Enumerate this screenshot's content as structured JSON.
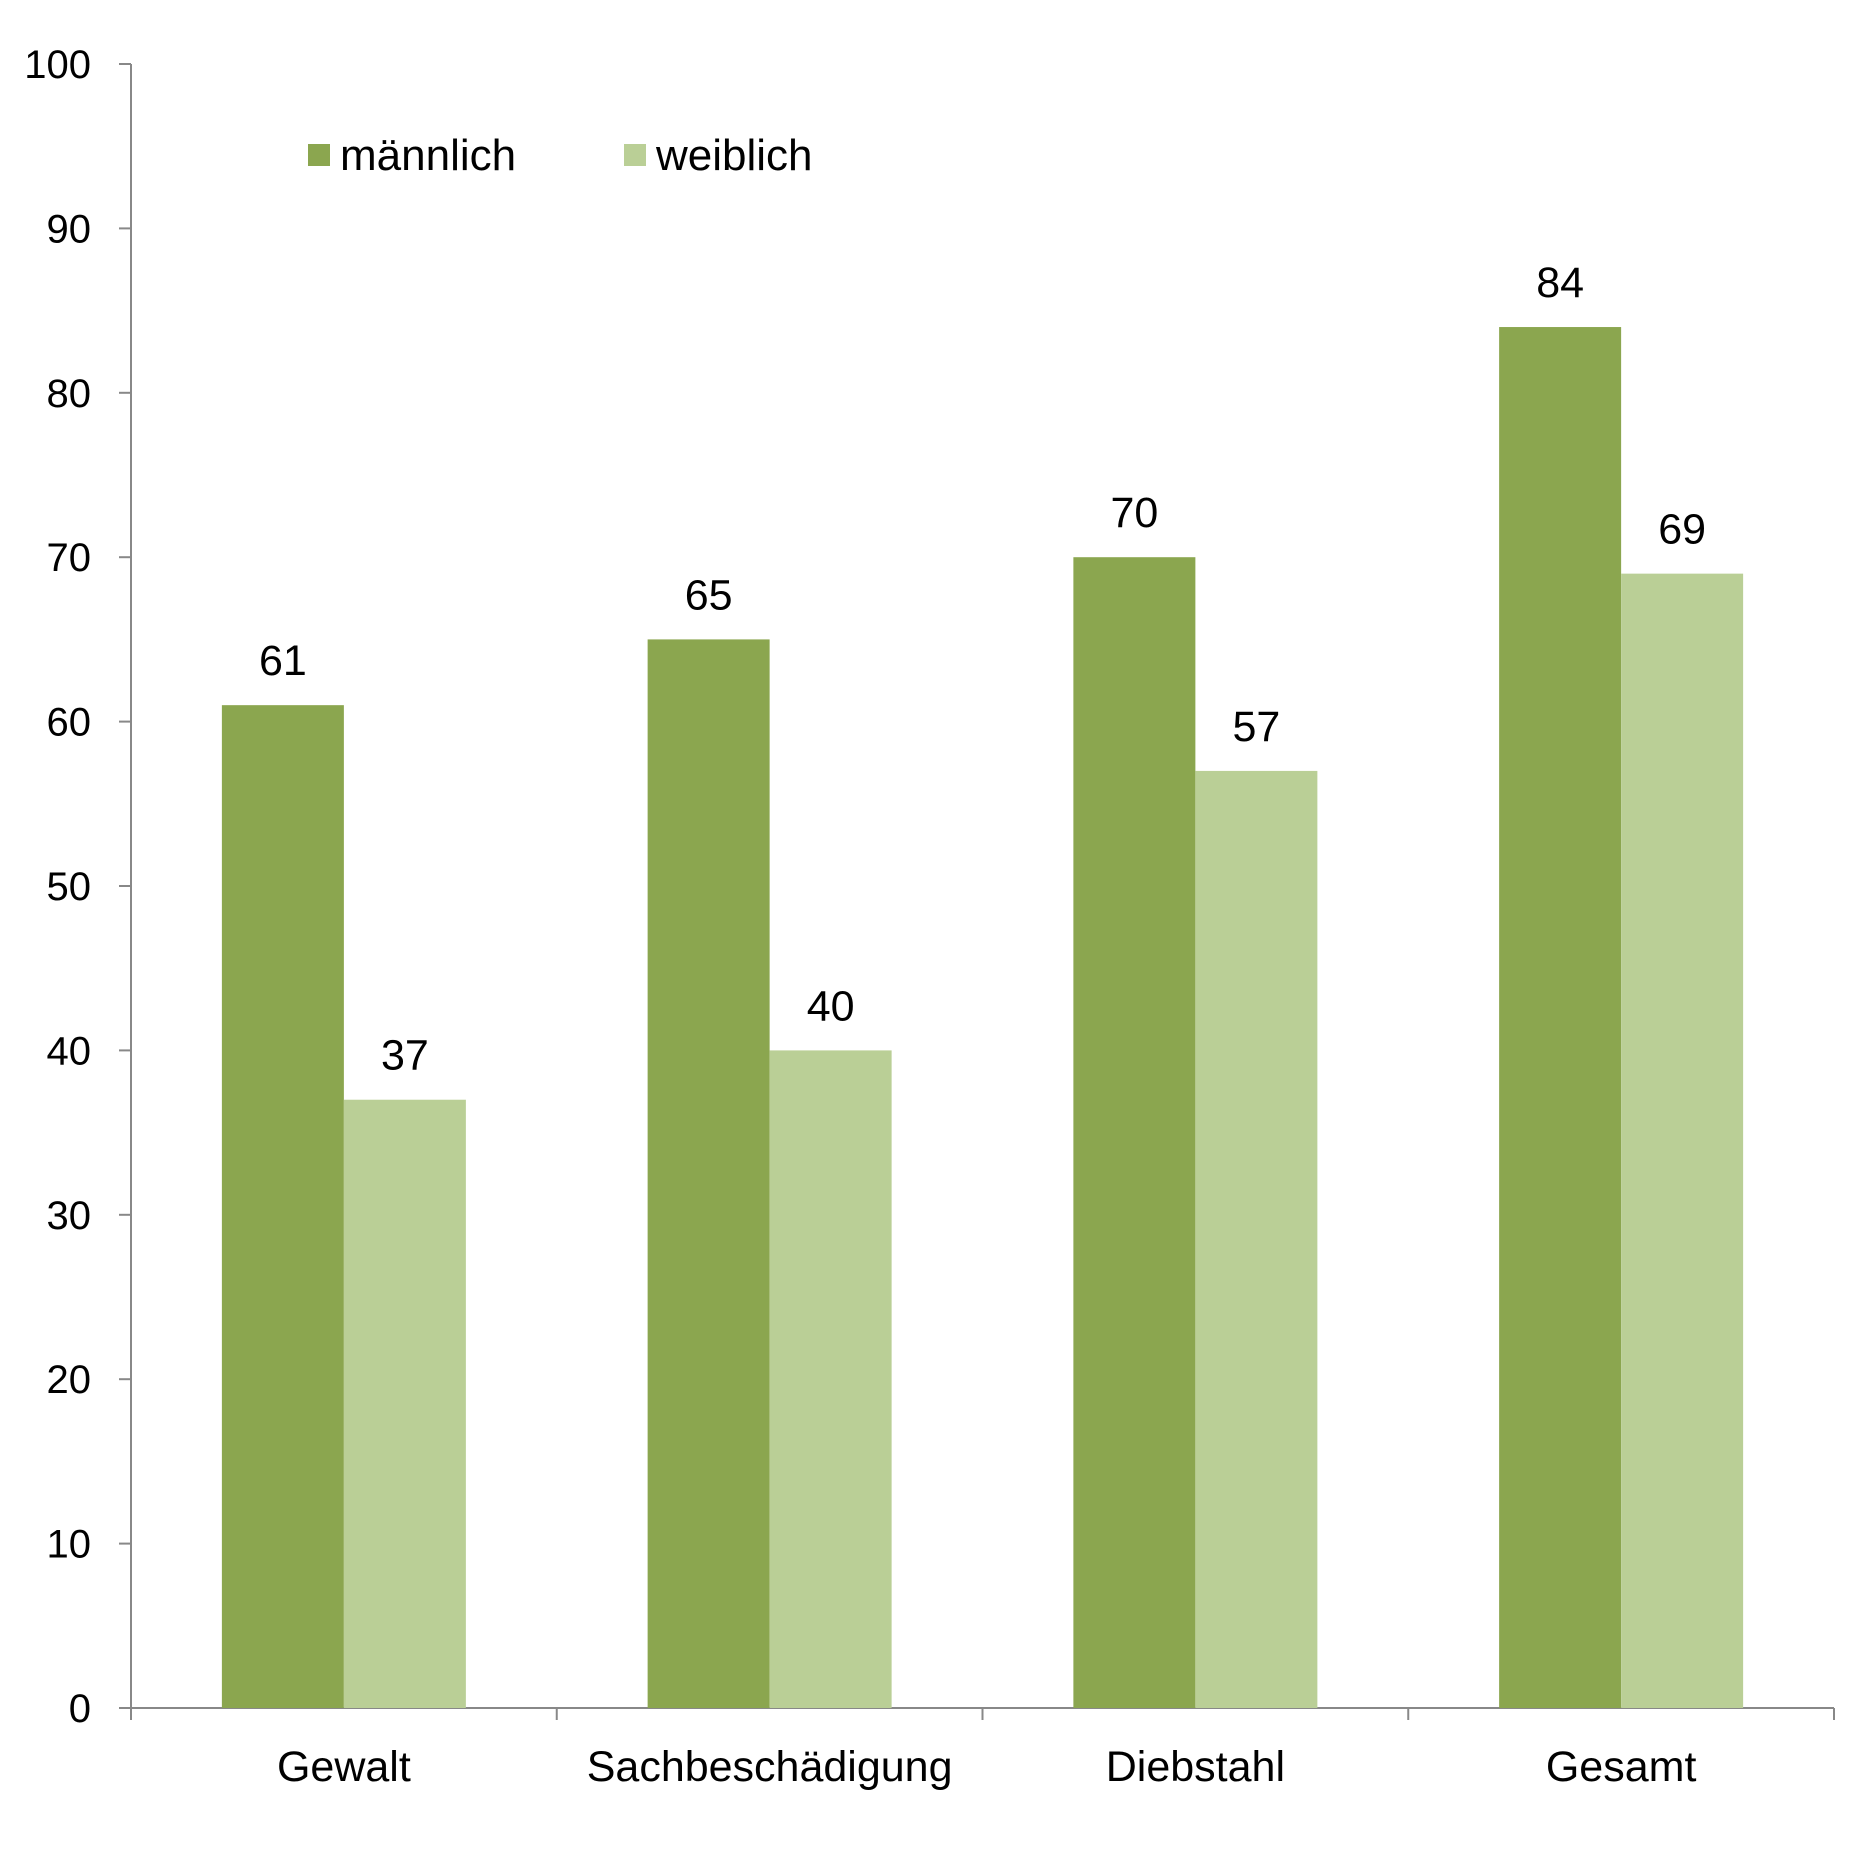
{
  "chart_data": {
    "type": "bar",
    "categories": [
      "Gewalt",
      "Sachbeschädigung",
      "Diebstahl",
      "Gesamt"
    ],
    "series": [
      {
        "name": "männlich",
        "values": [
          61,
          65,
          70,
          84
        ],
        "color": "#8ba64f"
      },
      {
        "name": "weiblich",
        "values": [
          37,
          40,
          57,
          69
        ],
        "color": "#bacf96"
      }
    ],
    "ylim": [
      0,
      100
    ],
    "yticks": [
      0,
      10,
      20,
      30,
      40,
      50,
      60,
      70,
      80,
      90,
      100
    ],
    "grid": false,
    "legend_position": "top-left",
    "data_labels": true
  }
}
